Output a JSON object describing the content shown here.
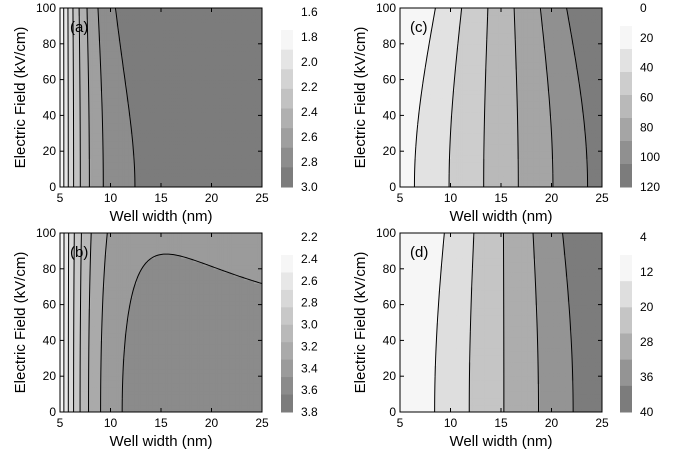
{
  "chart_data": [
    {
      "type": "heatmap",
      "panel_label": "(a)",
      "xlabel": "Well width (nm)",
      "ylabel": "Electric Field (kV/cm)",
      "xlim": [
        5,
        25
      ],
      "ylim": [
        0,
        100
      ],
      "xticks": [
        "5",
        "10",
        "15",
        "20",
        "25"
      ],
      "yticks": [
        "0",
        "20",
        "40",
        "60",
        "80",
        "100"
      ],
      "colorbar_ticks": [
        "1.6",
        "1.8",
        "2.0",
        "2.2",
        "2.4",
        "2.6",
        "2.8",
        "3.0"
      ],
      "colorbar_range": [
        1.6,
        3.0
      ],
      "colorbar_dark_end": "bottom",
      "model": {
        "kind": "saturating",
        "cLow": 1.6,
        "cHigh": 2.9,
        "tau": 2.6,
        "fieldCoef": 0.3,
        "fieldExp": 2,
        "wellRef": 5
      },
      "color_min": "#f6f6f6",
      "color_max": "#7c7c7c"
    },
    {
      "type": "heatmap",
      "panel_label": "(c)",
      "xlabel": "Well width (nm)",
      "ylabel": "Electric Field (kV/cm)",
      "xlim": [
        5,
        25
      ],
      "ylim": [
        0,
        100
      ],
      "xticks": [
        "5",
        "10",
        "15",
        "20",
        "25"
      ],
      "yticks": [
        "0",
        "20",
        "40",
        "60",
        "80",
        "100"
      ],
      "colorbar_ticks": [
        "0",
        "20",
        "40",
        "60",
        "80",
        "100",
        "120"
      ],
      "colorbar_range": [
        0,
        120
      ],
      "colorbar_dark_end": "bottom",
      "model": {
        "kind": "linear",
        "c0": 10,
        "slope": 5.0,
        "fieldCoef": 16,
        "fieldExp": 2,
        "wellRef": 15
      },
      "color_min": "#f6f6f6",
      "color_max": "#7c7c7c"
    },
    {
      "type": "heatmap",
      "panel_label": "(b)",
      "xlabel": "Well width (nm)",
      "ylabel": "Electric Field (kV/cm)",
      "xlim": [
        5,
        25
      ],
      "ylim": [
        0,
        100
      ],
      "xticks": [
        "5",
        "10",
        "15",
        "20",
        "25"
      ],
      "yticks": [
        "0",
        "20",
        "40",
        "60",
        "80",
        "100"
      ],
      "colorbar_ticks": [
        "2.2",
        "2.4",
        "2.6",
        "2.8",
        "3.0",
        "3.2",
        "3.4",
        "3.6",
        "3.8"
      ],
      "colorbar_range": [
        2.2,
        3.8
      ],
      "colorbar_dark_end": "bottom",
      "model": {
        "kind": "saturating",
        "cLow": 2.2,
        "cHigh": 3.6,
        "tau": 2.8,
        "fieldCoef": -0.3,
        "fieldExp": 2,
        "wellRef": 5
      },
      "color_min": "#f6f6f6",
      "color_max": "#7c7c7c"
    },
    {
      "type": "heatmap",
      "panel_label": "(d)",
      "xlabel": "Well width (nm)",
      "ylabel": "Electric Field (kV/cm)",
      "xlim": [
        5,
        25
      ],
      "ylim": [
        0,
        100
      ],
      "xticks": [
        "5",
        "10",
        "15",
        "20",
        "25"
      ],
      "yticks": [
        "0",
        "20",
        "40",
        "60",
        "80",
        "100"
      ],
      "colorbar_ticks": [
        "4",
        "12",
        "20",
        "28",
        "36",
        "40"
      ],
      "colorbar_range": [
        4,
        40
      ],
      "colorbar_dark_end": "bottom",
      "model": {
        "kind": "linear",
        "c0": 4,
        "slope": 1.75,
        "fieldCoef": 3,
        "fieldExp": 2,
        "wellRef": 15
      },
      "color_min": "#f6f6f6",
      "color_max": "#7c7c7c"
    }
  ]
}
